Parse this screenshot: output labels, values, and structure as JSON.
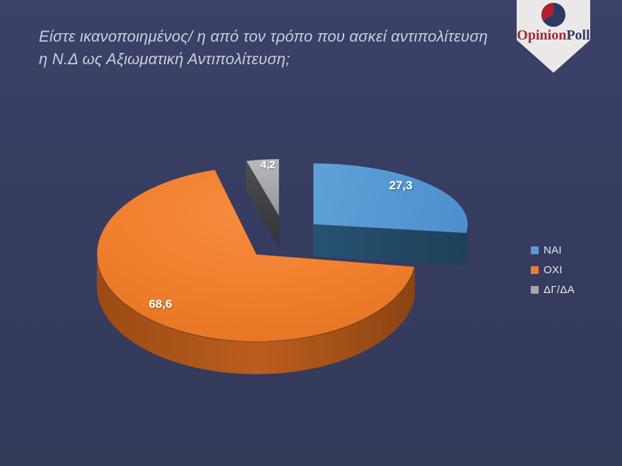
{
  "background_color": "#363c5f",
  "header": {
    "title_line1": "Είστε ικανοποιημένος/ η από τον τρόπο που ασκεί αντιπολίτευση",
    "title_line2": "η Ν.Δ ως Αξιωματική Αντιπολίτευση;"
  },
  "logo": {
    "wordmark_part1": "Opinion",
    "wordmark_part2": "Poll",
    "part1_color": "#a32638",
    "part2_color": "#2d3a64",
    "banner_color": "#ebe9e8",
    "icon": "pie-chart-icon",
    "icon_circle_color": "#2d3a64",
    "icon_wedge_color": "#b01f30"
  },
  "chart_data": {
    "type": "pie",
    "style": "3d-exploded",
    "start_angle_deg": -90,
    "direction": "clockwise",
    "title": "",
    "legend_position": "right",
    "data_label_color": "#ffffff",
    "slices": [
      {
        "label": "ΝΑΙ",
        "value": 27.3,
        "display_value": "27,3",
        "color": "#5b9bd5",
        "side_color": "#21495f"
      },
      {
        "label": "ΟΧΙ",
        "value": 68.6,
        "display_value": "68,6",
        "color": "#ed7d31",
        "side_color": "#a5531a"
      },
      {
        "label": "ΔΓ/ΔΑ",
        "value": 4.2,
        "display_value": "4,2",
        "color": "#a6a6a6",
        "side_color": "#3d3f42"
      }
    ]
  }
}
